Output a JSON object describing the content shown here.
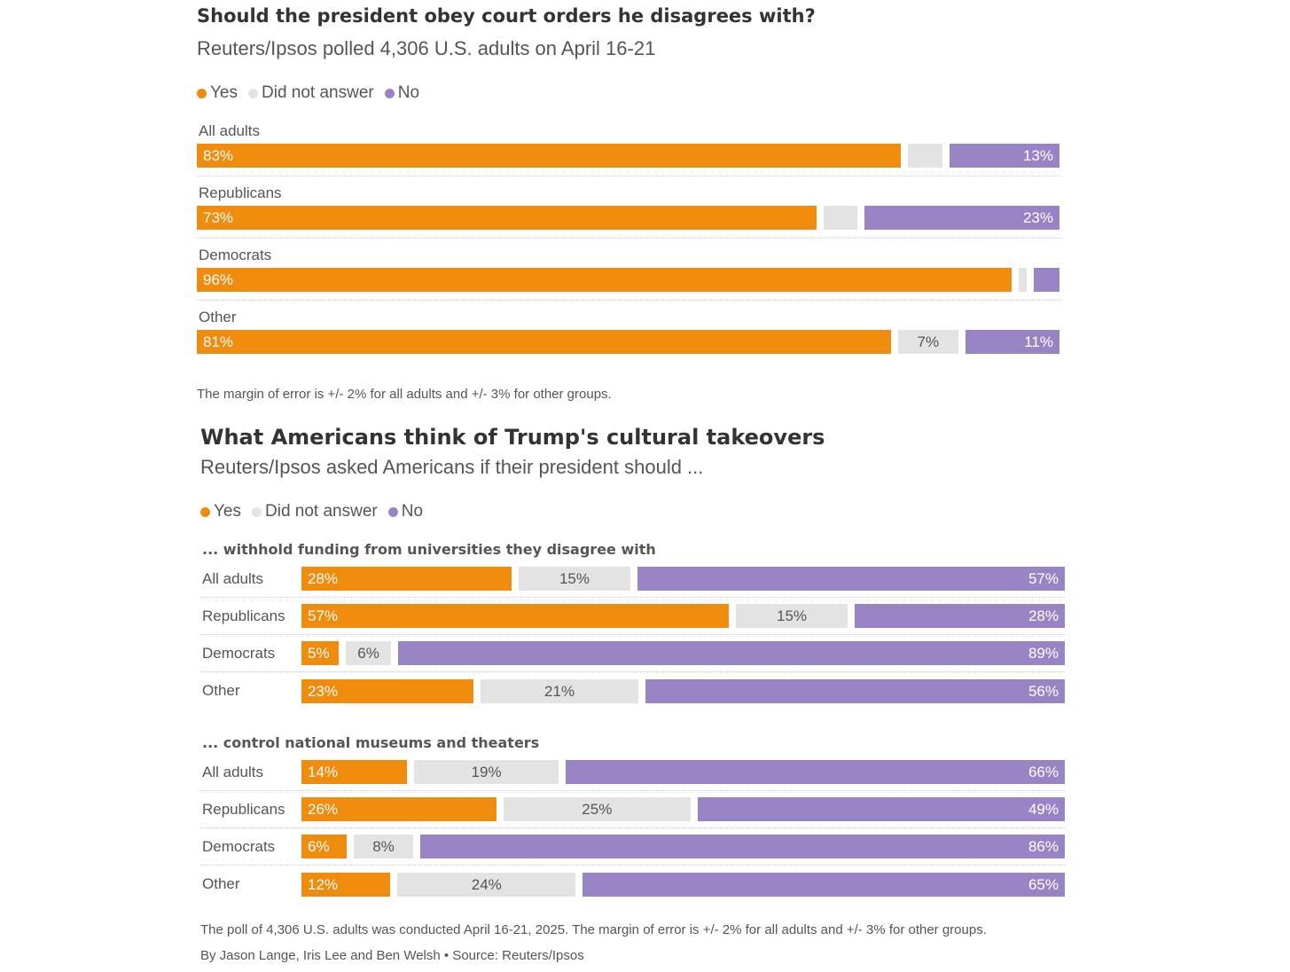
{
  "colors": {
    "yes": "#ef8c0e",
    "na": "#e3e3e3",
    "no": "#9884c4"
  },
  "chart_data": [
    {
      "type": "bar",
      "orientation": "horizontal-stacked",
      "title": "Should the president obey court orders he disagrees with?",
      "subtitle": "Reuters/Ipsos polled 4,306 U.S. adults on April 16-21",
      "legend": [
        "Yes",
        "Did not answer",
        "No"
      ],
      "legend_placement": "top-left",
      "categories": [
        "All adults",
        "Republicans",
        "Democrats",
        "Other"
      ],
      "series": [
        {
          "name": "Yes",
          "values": [
            83,
            73,
            96,
            81
          ],
          "labels": [
            "83%",
            "73%",
            "96%",
            "81%"
          ]
        },
        {
          "name": "Did not answer",
          "values": [
            4,
            4,
            1,
            7
          ],
          "labels": [
            "",
            "",
            "",
            "7%"
          ]
        },
        {
          "name": "No",
          "values": [
            13,
            23,
            3,
            11
          ],
          "labels": [
            "13%",
            "23%",
            "",
            "11%"
          ]
        }
      ],
      "note": "The margin of error is +/- 2% for all adults and +/- 3% for other groups."
    },
    {
      "type": "bar",
      "orientation": "horizontal-stacked",
      "title": "What Americans think of Trump's cultural takeovers",
      "subtitle": "Reuters/Ipsos asked Americans if their president should ...",
      "legend": [
        "Yes",
        "Did not answer",
        "No"
      ],
      "legend_placement": "top-left",
      "groups": [
        {
          "title": "... withhold funding from universities they disagree with",
          "categories": [
            "All adults",
            "Republicans",
            "Democrats",
            "Other"
          ],
          "series": [
            {
              "name": "Yes",
              "values": [
                28,
                57,
                5,
                23
              ],
              "labels": [
                "28%",
                "57%",
                "5%",
                "23%"
              ]
            },
            {
              "name": "Did not answer",
              "values": [
                15,
                15,
                6,
                21
              ],
              "labels": [
                "15%",
                "15%",
                "6%",
                "21%"
              ]
            },
            {
              "name": "No",
              "values": [
                57,
                28,
                89,
                56
              ],
              "labels": [
                "57%",
                "28%",
                "89%",
                "56%"
              ]
            }
          ]
        },
        {
          "title": "... control national museums and theaters",
          "categories": [
            "All adults",
            "Republicans",
            "Democrats",
            "Other"
          ],
          "series": [
            {
              "name": "Yes",
              "values": [
                14,
                26,
                6,
                12
              ],
              "labels": [
                "14%",
                "26%",
                "6%",
                "12%"
              ]
            },
            {
              "name": "Did not answer",
              "values": [
                19,
                25,
                8,
                24
              ],
              "labels": [
                "19%",
                "25%",
                "8%",
                "24%"
              ]
            },
            {
              "name": "No",
              "values": [
                66,
                49,
                86,
                65
              ],
              "labels": [
                "66%",
                "49%",
                "86%",
                "65%"
              ]
            }
          ]
        }
      ],
      "note": "The poll of 4,306 U.S. adults was conducted April 16-21, 2025. The margin of error is +/- 2% for all adults and +/- 3% for other groups.",
      "credit": "By Jason Lange, Iris Lee and Ben Welsh • Source: Reuters/Ipsos"
    }
  ]
}
